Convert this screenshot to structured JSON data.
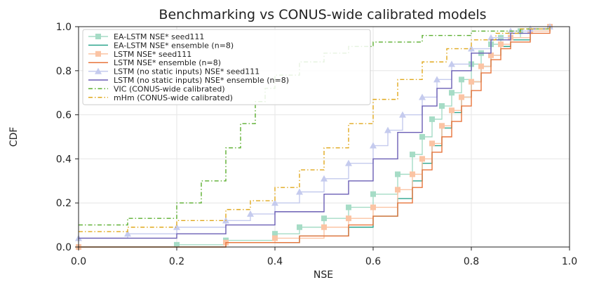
{
  "chart_data": {
    "type": "line",
    "title": "Benchmarking vs CONUS-wide calibrated models",
    "xlabel": "NSE",
    "ylabel": "CDF",
    "xlim": [
      0.0,
      1.0
    ],
    "ylim": [
      0.0,
      1.0
    ],
    "xticks": [
      "0.0",
      "0.2",
      "0.4",
      "0.6",
      "0.8",
      "1.0"
    ],
    "yticks": [
      "0.0",
      "0.2",
      "0.4",
      "0.6",
      "0.8",
      "1.0"
    ],
    "grid": true,
    "legend_position": "top-left",
    "series": [
      {
        "name": "EA-LSTM NSE* seed111",
        "color": "#a6dcc6",
        "style": "solid",
        "marker": "square",
        "x": [
          0.0,
          0.2,
          0.3,
          0.4,
          0.45,
          0.5,
          0.55,
          0.6,
          0.65,
          0.68,
          0.7,
          0.72,
          0.74,
          0.76,
          0.78,
          0.8,
          0.82,
          0.84,
          0.86,
          0.9,
          0.96
        ],
        "y": [
          0.0,
          0.01,
          0.03,
          0.06,
          0.09,
          0.13,
          0.18,
          0.24,
          0.33,
          0.42,
          0.5,
          0.58,
          0.64,
          0.7,
          0.76,
          0.83,
          0.88,
          0.92,
          0.95,
          0.98,
          1.0
        ]
      },
      {
        "name": "EA-LSTM NSE* ensemble (n=8)",
        "color": "#2ca58d",
        "style": "solid",
        "marker": "none",
        "x": [
          0.0,
          0.3,
          0.45,
          0.55,
          0.6,
          0.65,
          0.68,
          0.7,
          0.72,
          0.74,
          0.76,
          0.78,
          0.8,
          0.82,
          0.84,
          0.86,
          0.88,
          0.92,
          0.96
        ],
        "y": [
          0.0,
          0.02,
          0.05,
          0.09,
          0.14,
          0.22,
          0.3,
          0.38,
          0.46,
          0.54,
          0.61,
          0.68,
          0.75,
          0.82,
          0.87,
          0.91,
          0.94,
          0.98,
          1.0
        ]
      },
      {
        "name": "LSTM NSE* seed111",
        "color": "#fbc4a4",
        "style": "solid",
        "marker": "square",
        "x": [
          0.0,
          0.3,
          0.4,
          0.5,
          0.55,
          0.6,
          0.65,
          0.68,
          0.7,
          0.72,
          0.74,
          0.76,
          0.78,
          0.8,
          0.82,
          0.84,
          0.86,
          0.88,
          0.92,
          0.96
        ],
        "y": [
          0.0,
          0.02,
          0.04,
          0.09,
          0.13,
          0.18,
          0.26,
          0.33,
          0.4,
          0.47,
          0.55,
          0.62,
          0.68,
          0.75,
          0.82,
          0.87,
          0.92,
          0.95,
          0.98,
          1.0
        ]
      },
      {
        "name": "LSTM NSE* ensemble (n=8)",
        "color": "#e8743b",
        "style": "solid",
        "marker": "none",
        "x": [
          0.0,
          0.3,
          0.45,
          0.55,
          0.6,
          0.65,
          0.68,
          0.7,
          0.72,
          0.74,
          0.76,
          0.78,
          0.8,
          0.82,
          0.84,
          0.86,
          0.88,
          0.92,
          0.96
        ],
        "y": [
          0.0,
          0.02,
          0.05,
          0.1,
          0.14,
          0.2,
          0.27,
          0.35,
          0.43,
          0.5,
          0.57,
          0.64,
          0.71,
          0.79,
          0.85,
          0.9,
          0.93,
          0.97,
          1.0
        ]
      },
      {
        "name": "LSTM (no static inputs) NSE* seed111",
        "color": "#c5cbee",
        "style": "solid",
        "marker": "triangle",
        "x": [
          0.0,
          0.1,
          0.2,
          0.3,
          0.35,
          0.4,
          0.45,
          0.5,
          0.55,
          0.6,
          0.63,
          0.66,
          0.7,
          0.73,
          0.76,
          0.8,
          0.84,
          0.88,
          0.92,
          0.96
        ],
        "y": [
          0.04,
          0.06,
          0.09,
          0.12,
          0.15,
          0.2,
          0.25,
          0.31,
          0.38,
          0.46,
          0.53,
          0.6,
          0.68,
          0.76,
          0.83,
          0.9,
          0.95,
          0.98,
          0.99,
          1.0
        ]
      },
      {
        "name": "LSTM (no static inputs) NSE* ensemble (n=8)",
        "color": "#6b5fb5",
        "style": "solid",
        "marker": "none",
        "x": [
          0.0,
          0.2,
          0.3,
          0.4,
          0.5,
          0.55,
          0.6,
          0.65,
          0.7,
          0.73,
          0.76,
          0.8,
          0.84,
          0.88,
          0.92,
          0.96
        ],
        "y": [
          0.04,
          0.06,
          0.1,
          0.16,
          0.24,
          0.3,
          0.4,
          0.52,
          0.64,
          0.72,
          0.8,
          0.88,
          0.94,
          0.97,
          0.99,
          1.0
        ]
      },
      {
        "name": "VIC (CONUS-wide calibrated)",
        "color": "#5aae2e",
        "style": "dashdot",
        "marker": "none",
        "x": [
          0.0,
          0.1,
          0.2,
          0.25,
          0.3,
          0.33,
          0.36,
          0.38,
          0.4,
          0.45,
          0.5,
          0.55,
          0.6,
          0.7,
          0.8,
          0.9,
          0.96
        ],
        "y": [
          0.1,
          0.13,
          0.2,
          0.3,
          0.45,
          0.56,
          0.66,
          0.72,
          0.78,
          0.84,
          0.88,
          0.91,
          0.93,
          0.96,
          0.98,
          0.99,
          1.0
        ]
      },
      {
        "name": "mHm (CONUS-wide calibrated)",
        "color": "#e0a81c",
        "style": "dashdot",
        "marker": "none",
        "x": [
          0.0,
          0.1,
          0.2,
          0.3,
          0.35,
          0.4,
          0.45,
          0.5,
          0.55,
          0.6,
          0.65,
          0.7,
          0.75,
          0.8,
          0.85,
          0.9,
          0.96
        ],
        "y": [
          0.07,
          0.09,
          0.12,
          0.17,
          0.21,
          0.27,
          0.35,
          0.45,
          0.56,
          0.67,
          0.76,
          0.84,
          0.9,
          0.94,
          0.97,
          0.99,
          1.0
        ]
      }
    ]
  }
}
